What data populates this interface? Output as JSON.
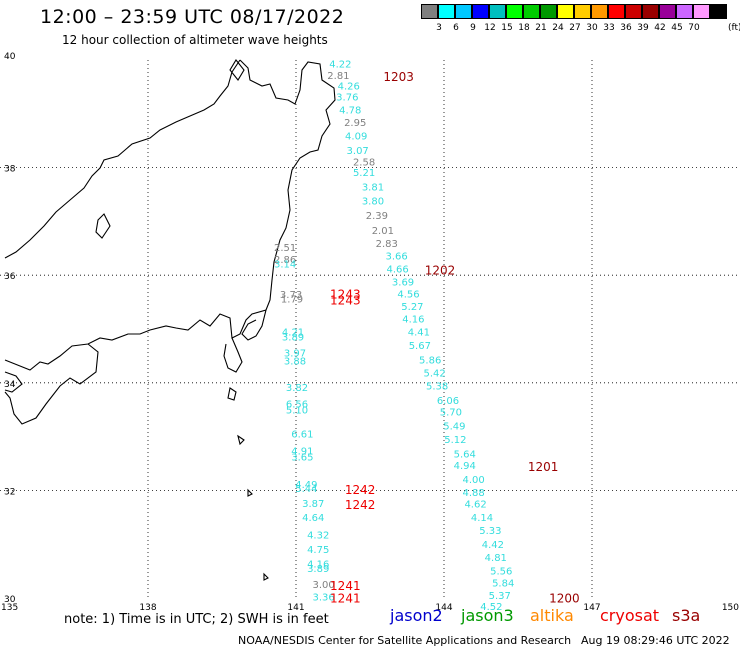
{
  "header": {
    "title": "12:00 – 23:59 UTC 08/17/2022",
    "subtitle": "12 hour collection of altimeter wave heights"
  },
  "scale": {
    "colors": [
      "#7f7f7f",
      "#00ffff",
      "#00c8ff",
      "#0000ff",
      "#00bfbf",
      "#00ff00",
      "#00cc00",
      "#009900",
      "#ffff00",
      "#ffcc00",
      "#ff9900",
      "#ff0000",
      "#cc0000",
      "#990000",
      "#990099",
      "#cc66ff",
      "#ff99ff",
      "#000000"
    ],
    "labels": [
      "3",
      "6",
      "9",
      "12",
      "15",
      "18",
      "21",
      "24",
      "27",
      "30",
      "33",
      "36",
      "39",
      "42",
      "45",
      "70"
    ],
    "unit": "(ft)"
  },
  "axes": {
    "lat_labels": [
      "40",
      "38",
      "36",
      "34",
      "32",
      "30"
    ],
    "lon_labels": [
      "135",
      "138",
      "141",
      "144",
      "147",
      "150"
    ]
  },
  "points": [
    {
      "lon": 141.9,
      "lat": 39.86,
      "v": "4.22",
      "c": "#33dddd"
    },
    {
      "lon": 141.86,
      "lat": 39.65,
      "v": "2.81",
      "c": "#808080"
    },
    {
      "lon": 142.07,
      "lat": 39.45,
      "v": "4.26",
      "c": "#33dddd"
    },
    {
      "lon": 142.04,
      "lat": 39.25,
      "v": "3.76",
      "c": "#33dddd"
    },
    {
      "lon": 142.1,
      "lat": 39.01,
      "v": "4.78",
      "c": "#33dddd"
    },
    {
      "lon": 142.2,
      "lat": 38.77,
      "v": "2.95",
      "c": "#808080"
    },
    {
      "lon": 142.22,
      "lat": 38.52,
      "v": "4.09",
      "c": "#33dddd"
    },
    {
      "lon": 142.25,
      "lat": 38.25,
      "v": "3.07",
      "c": "#33dddd"
    },
    {
      "lon": 142.38,
      "lat": 38.04,
      "v": "2.58",
      "c": "#808080"
    },
    {
      "lon": 142.38,
      "lat": 37.84,
      "v": "5.21",
      "c": "#33dddd"
    },
    {
      "lon": 142.56,
      "lat": 37.57,
      "v": "3.81",
      "c": "#33dddd"
    },
    {
      "lon": 142.56,
      "lat": 37.31,
      "v": "3.80",
      "c": "#33dddd"
    },
    {
      "lon": 142.64,
      "lat": 37.04,
      "v": "2.39",
      "c": "#808080"
    },
    {
      "lon": 142.76,
      "lat": 36.77,
      "v": "2.01",
      "c": "#808080"
    },
    {
      "lon": 142.84,
      "lat": 36.52,
      "v": "2.83",
      "c": "#808080"
    },
    {
      "lon": 143.04,
      "lat": 36.29,
      "v": "3.66",
      "c": "#33dddd"
    },
    {
      "lon": 143.06,
      "lat": 36.05,
      "v": "4.66",
      "c": "#33dddd"
    },
    {
      "lon": 143.17,
      "lat": 35.81,
      "v": "3.69",
      "c": "#33dddd"
    },
    {
      "lon": 143.28,
      "lat": 35.59,
      "v": "4.56",
      "c": "#33dddd"
    },
    {
      "lon": 143.36,
      "lat": 35.35,
      "v": "5.27",
      "c": "#33dddd"
    },
    {
      "lon": 143.38,
      "lat": 35.12,
      "v": "4.16",
      "c": "#33dddd"
    },
    {
      "lon": 143.49,
      "lat": 34.88,
      "v": "4.41",
      "c": "#33dddd"
    },
    {
      "lon": 143.51,
      "lat": 34.63,
      "v": "5.67",
      "c": "#33dddd"
    },
    {
      "lon": 143.72,
      "lat": 34.36,
      "v": "5.86",
      "c": "#33dddd"
    },
    {
      "lon": 143.81,
      "lat": 34.12,
      "v": "5.42",
      "c": "#33dddd"
    },
    {
      "lon": 143.86,
      "lat": 33.88,
      "v": "5.38",
      "c": "#33dddd"
    },
    {
      "lon": 144.08,
      "lat": 33.61,
      "v": "6.06",
      "c": "#33dddd"
    },
    {
      "lon": 144.14,
      "lat": 33.39,
      "v": "5.70",
      "c": "#33dddd"
    },
    {
      "lon": 144.21,
      "lat": 33.13,
      "v": "5.49",
      "c": "#33dddd"
    },
    {
      "lon": 144.23,
      "lat": 32.88,
      "v": "5.12",
      "c": "#33dddd"
    },
    {
      "lon": 144.42,
      "lat": 32.61,
      "v": "5.64",
      "c": "#33dddd"
    },
    {
      "lon": 144.42,
      "lat": 32.4,
      "v": "4.94",
      "c": "#33dddd"
    },
    {
      "lon": 144.6,
      "lat": 32.14,
      "v": "4.00",
      "c": "#33dddd"
    },
    {
      "lon": 144.6,
      "lat": 31.9,
      "v": "4.88",
      "c": "#33dddd"
    },
    {
      "lon": 144.64,
      "lat": 31.68,
      "v": "4.62",
      "c": "#33dddd"
    },
    {
      "lon": 144.77,
      "lat": 31.43,
      "v": "4.14",
      "c": "#33dddd"
    },
    {
      "lon": 144.94,
      "lat": 31.19,
      "v": "5.33",
      "c": "#33dddd"
    },
    {
      "lon": 144.99,
      "lat": 30.93,
      "v": "4.42",
      "c": "#33dddd"
    },
    {
      "lon": 145.05,
      "lat": 30.69,
      "v": "4.81",
      "c": "#33dddd"
    },
    {
      "lon": 145.16,
      "lat": 30.44,
      "v": "5.56",
      "c": "#33dddd"
    },
    {
      "lon": 145.2,
      "lat": 30.21,
      "v": "5.84",
      "c": "#33dddd"
    },
    {
      "lon": 145.13,
      "lat": 29.98,
      "v": "5.37",
      "c": "#33dddd"
    },
    {
      "lon": 144.96,
      "lat": 29.78,
      "v": "4.52",
      "c": "#33dddd"
    },
    {
      "lon": 140.78,
      "lat": 36.45,
      "v": "2.51",
      "c": "#808080"
    },
    {
      "lon": 140.78,
      "lat": 36.23,
      "v": "2.86",
      "c": "#808080"
    },
    {
      "lon": 140.78,
      "lat": 36.14,
      "v": "3.14",
      "c": "#33dddd"
    },
    {
      "lon": 140.9,
      "lat": 35.58,
      "v": "3.73",
      "c": "#808080"
    },
    {
      "lon": 140.92,
      "lat": 35.49,
      "v": "1.79",
      "c": "#808080"
    },
    {
      "lon": 140.94,
      "lat": 34.88,
      "v": "4.21",
      "c": "#33dddd"
    },
    {
      "lon": 140.94,
      "lat": 34.79,
      "v": "3.89",
      "c": "#33dddd"
    },
    {
      "lon": 140.98,
      "lat": 34.49,
      "v": "3.97",
      "c": "#33dddd"
    },
    {
      "lon": 140.98,
      "lat": 34.34,
      "v": "3.88",
      "c": "#33dddd"
    },
    {
      "lon": 141.02,
      "lat": 33.85,
      "v": "3.82",
      "c": "#33dddd"
    },
    {
      "lon": 141.02,
      "lat": 33.54,
      "v": "6.56",
      "c": "#33dddd"
    },
    {
      "lon": 141.02,
      "lat": 33.43,
      "v": "5.10",
      "c": "#33dddd"
    },
    {
      "lon": 141.13,
      "lat": 32.98,
      "v": "6.61",
      "c": "#33dddd"
    },
    {
      "lon": 141.13,
      "lat": 32.67,
      "v": "4.91",
      "c": "#33dddd"
    },
    {
      "lon": 141.13,
      "lat": 32.56,
      "v": "3.65",
      "c": "#33dddd"
    },
    {
      "lon": 141.21,
      "lat": 32.04,
      "v": "4.49",
      "c": "#33dddd"
    },
    {
      "lon": 141.21,
      "lat": 31.97,
      "v": "5.44",
      "c": "#33dddd"
    },
    {
      "lon": 141.35,
      "lat": 31.69,
      "v": "3.87",
      "c": "#33dddd"
    },
    {
      "lon": 141.35,
      "lat": 31.43,
      "v": "4.64",
      "c": "#33dddd"
    },
    {
      "lon": 141.45,
      "lat": 31.11,
      "v": "4.32",
      "c": "#33dddd"
    },
    {
      "lon": 141.45,
      "lat": 30.84,
      "v": "4.75",
      "c": "#33dddd"
    },
    {
      "lon": 141.45,
      "lat": 30.57,
      "v": "4.16",
      "c": "#33dddd"
    },
    {
      "lon": 141.45,
      "lat": 30.48,
      "v": "3.89",
      "c": "#33dddd"
    },
    {
      "lon": 141.56,
      "lat": 30.19,
      "v": "3.00",
      "c": "#808080"
    },
    {
      "lon": 141.56,
      "lat": 29.95,
      "v": "3.36",
      "c": "#33dddd"
    }
  ],
  "passes": [
    {
      "lon": 143.08,
      "lat": 39.65,
      "t": "1203",
      "c": "#990000"
    },
    {
      "lon": 143.92,
      "lat": 36.05,
      "t": "1202",
      "c": "#990000"
    },
    {
      "lon": 142.0,
      "lat": 35.6,
      "t": "1243",
      "c": "#ee0000"
    },
    {
      "lon": 142.0,
      "lat": 35.49,
      "t": "1243",
      "c": "#ee0000"
    },
    {
      "lon": 146.01,
      "lat": 32.4,
      "t": "1201",
      "c": "#990000"
    },
    {
      "lon": 142.3,
      "lat": 31.97,
      "t": "1242",
      "c": "#ee0000"
    },
    {
      "lon": 142.3,
      "lat": 31.69,
      "t": "1242",
      "c": "#ee0000"
    },
    {
      "lon": 142.0,
      "lat": 30.19,
      "t": "1241",
      "c": "#ee0000"
    },
    {
      "lon": 142.0,
      "lat": 29.95,
      "t": "1241",
      "c": "#ee0000"
    },
    {
      "lon": 146.44,
      "lat": 29.95,
      "t": "1200",
      "c": "#990000"
    }
  ],
  "footer": {
    "note": "note:  1) Time is in UTC;  2) SWH is in feet",
    "legend": [
      {
        "name": "jason2",
        "color": "#0000cc"
      },
      {
        "name": "jason3",
        "color": "#009900"
      },
      {
        "name": "altika",
        "color": "#ff8800"
      },
      {
        "name": "cryosat",
        "color": "#ee0000"
      },
      {
        "name": "s3a",
        "color": "#990000"
      }
    ],
    "credit": "NOAA/NESDIS Center for Satellite Applications and Research",
    "stamp": "Aug 19 08:29:46 UTC 2022"
  }
}
